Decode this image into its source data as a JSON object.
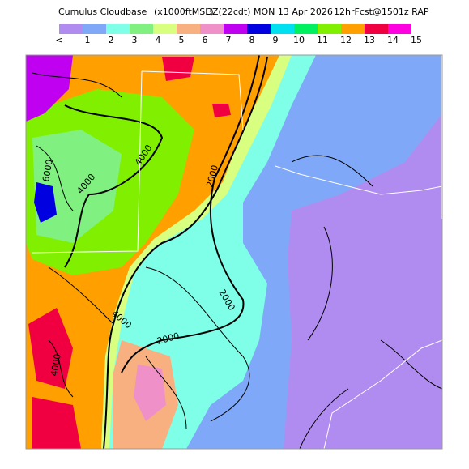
{
  "header": {
    "title": "Cumulus Cloudbase",
    "units": "(x1000ftMSL)",
    "valid": "3Z(22cdt) MON 13 Apr 2026",
    "forecast": "12hrFcst@1501z RAP"
  },
  "legend": {
    "labels": [
      "<",
      "1",
      "2",
      "3",
      "4",
      "5",
      "6",
      "7",
      "8",
      "9",
      "10",
      "11",
      "12",
      "13",
      "14",
      "15"
    ],
    "colors": [
      "#b08cf0",
      "#80a8f8",
      "#80ffe8",
      "#80f080",
      "#d8ff80",
      "#f8b080",
      "#f090c8",
      "#c000f0",
      "#0000e0",
      "#00e0f0",
      "#00f060",
      "#80f000",
      "#ffa000",
      "#f00040",
      "#ff00e0"
    ]
  },
  "map": {
    "contour_labels": [
      "6000",
      "4000",
      "4000",
      "2000",
      "2000",
      "4000",
      "2000",
      "4000"
    ]
  }
}
